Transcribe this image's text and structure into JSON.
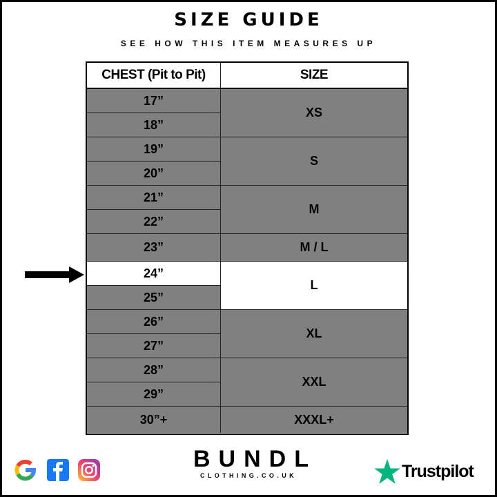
{
  "title": "SIZE GUIDE",
  "subtitle": "SEE HOW THIS ITEM MEASURES UP",
  "table": {
    "headers": [
      "CHEST (Pit to Pit)",
      "SIZE"
    ],
    "chest": [
      "17”",
      "18”",
      "19”",
      "20”",
      "21”",
      "22”",
      "23”",
      "24”",
      "25”",
      "26”",
      "27”",
      "28”",
      "29”",
      "30”+"
    ],
    "sizes": [
      "XS",
      "S",
      "M",
      "M / L",
      "L",
      "XL",
      "XXL",
      "XXXL+"
    ],
    "highlighted_chest": "24”",
    "highlighted_size": "L"
  },
  "colors": {
    "row_bg": "#808080",
    "highlight_bg": "#ffffff",
    "trustpilot_green": "#00b67a"
  },
  "footer": {
    "brand": "BUNDL",
    "brand_sub": "CLOTHING.CO.UK",
    "trustpilot": "Trustpilot",
    "icons": [
      "google-icon",
      "facebook-icon",
      "instagram-icon",
      "trustpilot-star-icon"
    ]
  }
}
